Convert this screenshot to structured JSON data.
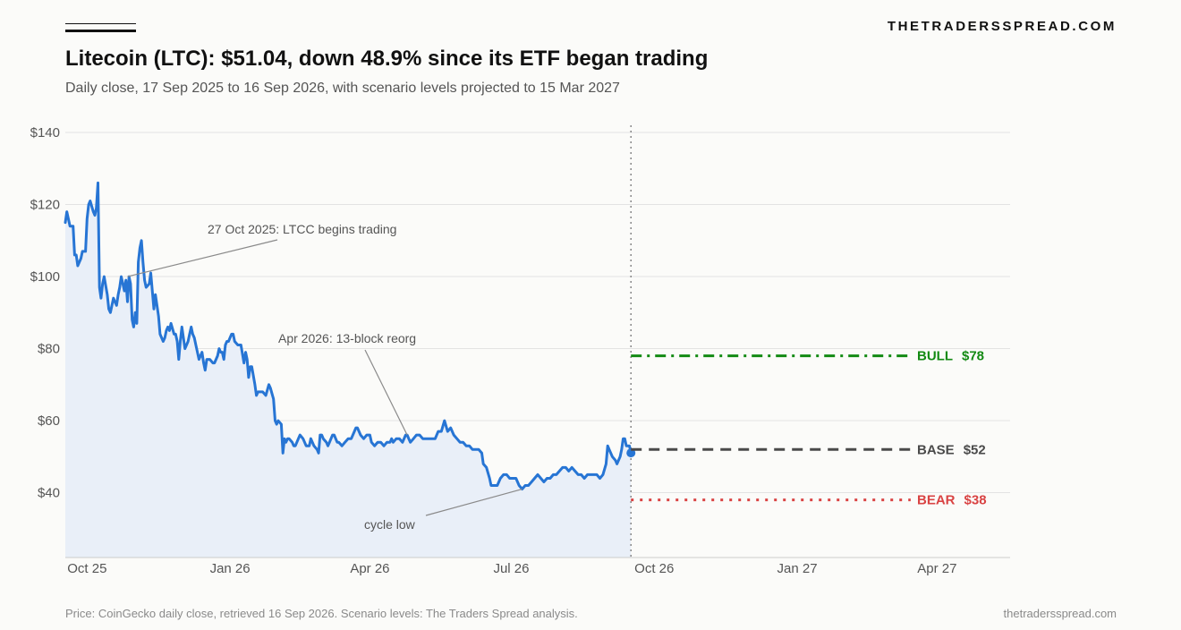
{
  "header": {
    "brand": "THETRADERSSPREAD.COM",
    "title": "Litecoin (LTC): $51.04, down 48.9% since its ETF began trading",
    "subtitle": "Daily close, 17 Sep 2025 to 16 Sep 2026, with scenario levels projected to 15 Mar 2027"
  },
  "footer": {
    "source": "Price: CoinGecko daily close, retrieved 16 Sep 2026. Scenario levels: The Traders Spread analysis.",
    "site": "thetradersspread.com"
  },
  "colors": {
    "price_line": "#2775d4",
    "area_fill": "#e9eff8",
    "bull": "#138a13",
    "base": "#4a4a4a",
    "bear": "#d94343",
    "grid": "#e3e3e3"
  },
  "chart_data": {
    "type": "line",
    "x_range": [
      "2025-09-17",
      "2027-05-18"
    ],
    "ylim": [
      22,
      142
    ],
    "y_ticks": [
      {
        "value": 40,
        "label": "$40"
      },
      {
        "value": 60,
        "label": "$60"
      },
      {
        "value": 80,
        "label": "$80"
      },
      {
        "value": 100,
        "label": "$100"
      },
      {
        "value": 120,
        "label": "$120"
      },
      {
        "value": 140,
        "label": "$140"
      }
    ],
    "x_ticks": [
      {
        "date": "2025-10-01",
        "label": "Oct 25"
      },
      {
        "date": "2026-01-01",
        "label": "Jan 26"
      },
      {
        "date": "2026-04-01",
        "label": "Apr 26"
      },
      {
        "date": "2026-07-01",
        "label": "Jul 26"
      },
      {
        "date": "2026-10-01",
        "label": "Oct 26"
      },
      {
        "date": "2027-01-01",
        "label": "Jan 27"
      },
      {
        "date": "2027-04-01",
        "label": "Apr 27"
      }
    ],
    "grid": true,
    "series": [
      {
        "name": "LTC daily close",
        "points": [
          [
            "2025-09-17",
            115
          ],
          [
            "2025-09-18",
            118
          ],
          [
            "2025-09-20",
            114
          ],
          [
            "2025-09-22",
            114
          ],
          [
            "2025-09-23",
            106
          ],
          [
            "2025-09-24",
            106
          ],
          [
            "2025-09-25",
            103
          ],
          [
            "2025-09-27",
            105
          ],
          [
            "2025-09-28",
            107
          ],
          [
            "2025-09-30",
            107
          ],
          [
            "2025-10-01",
            116
          ],
          [
            "2025-10-02",
            120
          ],
          [
            "2025-10-03",
            121
          ],
          [
            "2025-10-05",
            118
          ],
          [
            "2025-10-06",
            117
          ],
          [
            "2025-10-07",
            119
          ],
          [
            "2025-10-08",
            126
          ],
          [
            "2025-10-09",
            97
          ],
          [
            "2025-10-10",
            94
          ],
          [
            "2025-10-11",
            98
          ],
          [
            "2025-10-12",
            100
          ],
          [
            "2025-10-14",
            95
          ],
          [
            "2025-10-15",
            91
          ],
          [
            "2025-10-16",
            90
          ],
          [
            "2025-10-18",
            94
          ],
          [
            "2025-10-20",
            92
          ],
          [
            "2025-10-21",
            95
          ],
          [
            "2025-10-22",
            97
          ],
          [
            "2025-10-23",
            100
          ],
          [
            "2025-10-24",
            98
          ],
          [
            "2025-10-25",
            96
          ],
          [
            "2025-10-26",
            99
          ],
          [
            "2025-10-27",
            93
          ],
          [
            "2025-10-28",
            100
          ],
          [
            "2025-10-29",
            98
          ],
          [
            "2025-10-30",
            88
          ],
          [
            "2025-10-31",
            86
          ],
          [
            "2025-11-01",
            90
          ],
          [
            "2025-11-02",
            87
          ],
          [
            "2025-11-03",
            104
          ],
          [
            "2025-11-04",
            108
          ],
          [
            "2025-11-05",
            110
          ],
          [
            "2025-11-06",
            104
          ],
          [
            "2025-11-07",
            99
          ],
          [
            "2025-11-08",
            97
          ],
          [
            "2025-11-10",
            98
          ],
          [
            "2025-11-11",
            101
          ],
          [
            "2025-11-13",
            91
          ],
          [
            "2025-11-14",
            95
          ],
          [
            "2025-11-16",
            89
          ],
          [
            "2025-11-17",
            84
          ],
          [
            "2025-11-19",
            82
          ],
          [
            "2025-11-20",
            83
          ],
          [
            "2025-11-21",
            85
          ],
          [
            "2025-11-22",
            86
          ],
          [
            "2025-11-23",
            85
          ],
          [
            "2025-11-24",
            87
          ],
          [
            "2025-11-26",
            84
          ],
          [
            "2025-11-27",
            84
          ],
          [
            "2025-11-28",
            82
          ],
          [
            "2025-11-29",
            77
          ],
          [
            "2025-11-30",
            82
          ],
          [
            "2025-12-01",
            86
          ],
          [
            "2025-12-02",
            83
          ],
          [
            "2025-12-03",
            80
          ],
          [
            "2025-12-04",
            81
          ],
          [
            "2025-12-05",
            82
          ],
          [
            "2025-12-06",
            84
          ],
          [
            "2025-12-07",
            86
          ],
          [
            "2025-12-08",
            84
          ],
          [
            "2025-12-09",
            83
          ],
          [
            "2025-12-10",
            81
          ],
          [
            "2025-12-12",
            77
          ],
          [
            "2025-12-14",
            79
          ],
          [
            "2025-12-15",
            76
          ],
          [
            "2025-12-16",
            74
          ],
          [
            "2025-12-17",
            77
          ],
          [
            "2025-12-19",
            77
          ],
          [
            "2025-12-21",
            76
          ],
          [
            "2025-12-22",
            76
          ],
          [
            "2025-12-24",
            78
          ],
          [
            "2025-12-25",
            80
          ],
          [
            "2025-12-26",
            79
          ],
          [
            "2025-12-27",
            79
          ],
          [
            "2025-12-28",
            77
          ],
          [
            "2025-12-29",
            81
          ],
          [
            "2025-12-30",
            82
          ],
          [
            "2025-12-31",
            82
          ],
          [
            "2026-01-02",
            84
          ],
          [
            "2026-01-03",
            84
          ],
          [
            "2026-01-04",
            82
          ],
          [
            "2026-01-06",
            81
          ],
          [
            "2026-01-08",
            81
          ],
          [
            "2026-01-10",
            76
          ],
          [
            "2026-01-11",
            79
          ],
          [
            "2026-01-12",
            77
          ],
          [
            "2026-01-13",
            72
          ],
          [
            "2026-01-14",
            75
          ],
          [
            "2026-01-15",
            75
          ],
          [
            "2026-01-17",
            70
          ],
          [
            "2026-01-18",
            67
          ],
          [
            "2026-01-19",
            68
          ],
          [
            "2026-01-21",
            68
          ],
          [
            "2026-01-22",
            68
          ],
          [
            "2026-01-24",
            67
          ],
          [
            "2026-01-26",
            70
          ],
          [
            "2026-01-27",
            69
          ],
          [
            "2026-01-29",
            66
          ],
          [
            "2026-01-30",
            60
          ],
          [
            "2026-01-31",
            59
          ],
          [
            "2026-02-01",
            60
          ],
          [
            "2026-02-03",
            59
          ],
          [
            "2026-02-04",
            51
          ],
          [
            "2026-02-05",
            55
          ],
          [
            "2026-02-06",
            54
          ],
          [
            "2026-02-07",
            55
          ],
          [
            "2026-02-08",
            55
          ],
          [
            "2026-02-10",
            54
          ],
          [
            "2026-02-11",
            53
          ],
          [
            "2026-02-12",
            53
          ],
          [
            "2026-02-14",
            55
          ],
          [
            "2026-02-15",
            56
          ],
          [
            "2026-02-17",
            55
          ],
          [
            "2026-02-19",
            53
          ],
          [
            "2026-02-21",
            53
          ],
          [
            "2026-02-22",
            55
          ],
          [
            "2026-02-24",
            53
          ],
          [
            "2026-02-26",
            52
          ],
          [
            "2026-02-27",
            51
          ],
          [
            "2026-02-28",
            56
          ],
          [
            "2026-03-01",
            56
          ],
          [
            "2026-03-02",
            55
          ],
          [
            "2026-03-04",
            54
          ],
          [
            "2026-03-05",
            53
          ],
          [
            "2026-03-06",
            54
          ],
          [
            "2026-03-08",
            56
          ],
          [
            "2026-03-09",
            56
          ],
          [
            "2026-03-10",
            55
          ],
          [
            "2026-03-11",
            54
          ],
          [
            "2026-03-12",
            54
          ],
          [
            "2026-03-14",
            53
          ],
          [
            "2026-03-16",
            54
          ],
          [
            "2026-03-18",
            55
          ],
          [
            "2026-03-20",
            55
          ],
          [
            "2026-03-22",
            57
          ],
          [
            "2026-03-23",
            58
          ],
          [
            "2026-03-24",
            58
          ],
          [
            "2026-03-26",
            56
          ],
          [
            "2026-03-28",
            55
          ],
          [
            "2026-03-30",
            56
          ],
          [
            "2026-04-01",
            56
          ],
          [
            "2026-04-02",
            54
          ],
          [
            "2026-04-04",
            53
          ],
          [
            "2026-04-06",
            54
          ],
          [
            "2026-04-08",
            54
          ],
          [
            "2026-04-10",
            53
          ],
          [
            "2026-04-12",
            54
          ],
          [
            "2026-04-14",
            54
          ],
          [
            "2026-04-15",
            55
          ],
          [
            "2026-04-16",
            54
          ],
          [
            "2026-04-18",
            55
          ],
          [
            "2026-04-20",
            55
          ],
          [
            "2026-04-22",
            54
          ],
          [
            "2026-04-24",
            56
          ],
          [
            "2026-04-25",
            56
          ],
          [
            "2026-04-27",
            54
          ],
          [
            "2026-04-29",
            55
          ],
          [
            "2026-05-01",
            56
          ],
          [
            "2026-05-03",
            56
          ],
          [
            "2026-05-05",
            55
          ],
          [
            "2026-05-07",
            55
          ],
          [
            "2026-05-09",
            55
          ],
          [
            "2026-05-11",
            55
          ],
          [
            "2026-05-13",
            55
          ],
          [
            "2026-05-15",
            57
          ],
          [
            "2026-05-17",
            57
          ],
          [
            "2026-05-19",
            60
          ],
          [
            "2026-05-21",
            57
          ],
          [
            "2026-05-23",
            58
          ],
          [
            "2026-05-25",
            56
          ],
          [
            "2026-05-27",
            55
          ],
          [
            "2026-05-29",
            54
          ],
          [
            "2026-05-31",
            54
          ],
          [
            "2026-06-02",
            53
          ],
          [
            "2026-06-04",
            53
          ],
          [
            "2026-06-06",
            52
          ],
          [
            "2026-06-08",
            52
          ],
          [
            "2026-06-10",
            52
          ],
          [
            "2026-06-12",
            51
          ],
          [
            "2026-06-13",
            48
          ],
          [
            "2026-06-15",
            47
          ],
          [
            "2026-06-17",
            44
          ],
          [
            "2026-06-18",
            42
          ],
          [
            "2026-06-20",
            42
          ],
          [
            "2026-06-22",
            42
          ],
          [
            "2026-06-24",
            44
          ],
          [
            "2026-06-26",
            45
          ],
          [
            "2026-06-28",
            45
          ],
          [
            "2026-06-30",
            44
          ],
          [
            "2026-07-02",
            44
          ],
          [
            "2026-07-04",
            44
          ],
          [
            "2026-07-06",
            42
          ],
          [
            "2026-07-08",
            41
          ],
          [
            "2026-07-10",
            42
          ],
          [
            "2026-07-12",
            42
          ],
          [
            "2026-07-14",
            43
          ],
          [
            "2026-07-16",
            44
          ],
          [
            "2026-07-18",
            45
          ],
          [
            "2026-07-20",
            44
          ],
          [
            "2026-07-22",
            43
          ],
          [
            "2026-07-24",
            44
          ],
          [
            "2026-07-26",
            44
          ],
          [
            "2026-07-28",
            45
          ],
          [
            "2026-07-30",
            45
          ],
          [
            "2026-08-01",
            46
          ],
          [
            "2026-08-03",
            47
          ],
          [
            "2026-08-05",
            47
          ],
          [
            "2026-08-07",
            46
          ],
          [
            "2026-08-09",
            47
          ],
          [
            "2026-08-11",
            46
          ],
          [
            "2026-08-13",
            45
          ],
          [
            "2026-08-15",
            45
          ],
          [
            "2026-08-17",
            44
          ],
          [
            "2026-08-19",
            45
          ],
          [
            "2026-08-21",
            45
          ],
          [
            "2026-08-23",
            45
          ],
          [
            "2026-08-25",
            45
          ],
          [
            "2026-08-27",
            44
          ],
          [
            "2026-08-29",
            45
          ],
          [
            "2026-08-31",
            48
          ],
          [
            "2026-09-01",
            53
          ],
          [
            "2026-09-02",
            52
          ],
          [
            "2026-09-04",
            50
          ],
          [
            "2026-09-06",
            49
          ],
          [
            "2026-09-07",
            48
          ],
          [
            "2026-09-09",
            50
          ],
          [
            "2026-09-10",
            52
          ],
          [
            "2026-09-11",
            55
          ],
          [
            "2026-09-12",
            55
          ],
          [
            "2026-09-13",
            53
          ],
          [
            "2026-09-14",
            53
          ],
          [
            "2026-09-15",
            53
          ],
          [
            "2026-09-16",
            51.04
          ]
        ]
      }
    ],
    "last_point": {
      "date": "2026-09-16",
      "value": 51.04
    },
    "today_marker": "2026-09-16",
    "scenarios": [
      {
        "name": "BULL",
        "label": "BULL",
        "price_label": "$78",
        "value": 78,
        "start": "2026-09-16",
        "end": "2027-03-15",
        "style": "dashdot",
        "color_key": "bull"
      },
      {
        "name": "BASE",
        "label": "BASE",
        "price_label": "$52",
        "value": 52,
        "start": "2026-09-16",
        "end": "2027-03-15",
        "style": "dashed",
        "color_key": "base"
      },
      {
        "name": "BEAR",
        "label": "BEAR",
        "price_label": "$38",
        "value": 38,
        "start": "2026-09-16",
        "end": "2027-03-15",
        "style": "dotted",
        "color_key": "bear"
      }
    ],
    "annotations": [
      {
        "text": "27 Oct 2025: LTCC begins trading",
        "date": "2025-10-27",
        "value": 100
      },
      {
        "text": "Apr 2026: 13-block reorg",
        "date": "2026-04-25",
        "value": 56
      },
      {
        "text": "cycle low",
        "date": "2026-07-08",
        "value": 41
      }
    ]
  }
}
